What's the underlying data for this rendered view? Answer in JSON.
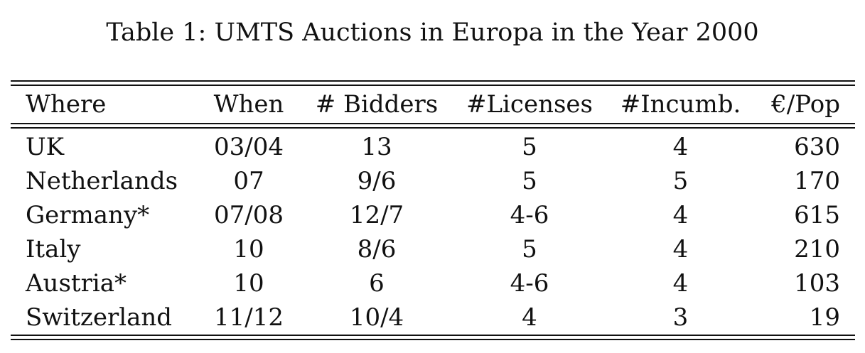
{
  "caption": "Table 1: UMTS Auctions in Europa in the Year 2000",
  "table": {
    "headers": {
      "where": "Where",
      "when": "When",
      "bidders": "# Bidders",
      "licenses": "#Licenses",
      "incumb": "#Incumb.",
      "pop": "€/Pop"
    },
    "rows": [
      {
        "where": "UK",
        "when": "03/04",
        "bidders": "13",
        "licenses": "5",
        "incumb": "4",
        "pop": "630"
      },
      {
        "where": "Netherlands",
        "when": "07",
        "bidders": "9/6",
        "licenses": "5",
        "incumb": "5",
        "pop": "170"
      },
      {
        "where": "Germany*",
        "when": "07/08",
        "bidders": "12/7",
        "licenses": "4-6",
        "incumb": "4",
        "pop": "615"
      },
      {
        "where": "Italy",
        "when": "10",
        "bidders": "8/6",
        "licenses": "5",
        "incumb": "4",
        "pop": "210"
      },
      {
        "where": "Austria*",
        "when": "10",
        "bidders": "6",
        "licenses": "4-6",
        "incumb": "4",
        "pop": "103"
      },
      {
        "where": "Switzerland",
        "when": "11/12",
        "bidders": "10/4",
        "licenses": "4",
        "incumb": "3",
        "pop": "19"
      }
    ]
  }
}
